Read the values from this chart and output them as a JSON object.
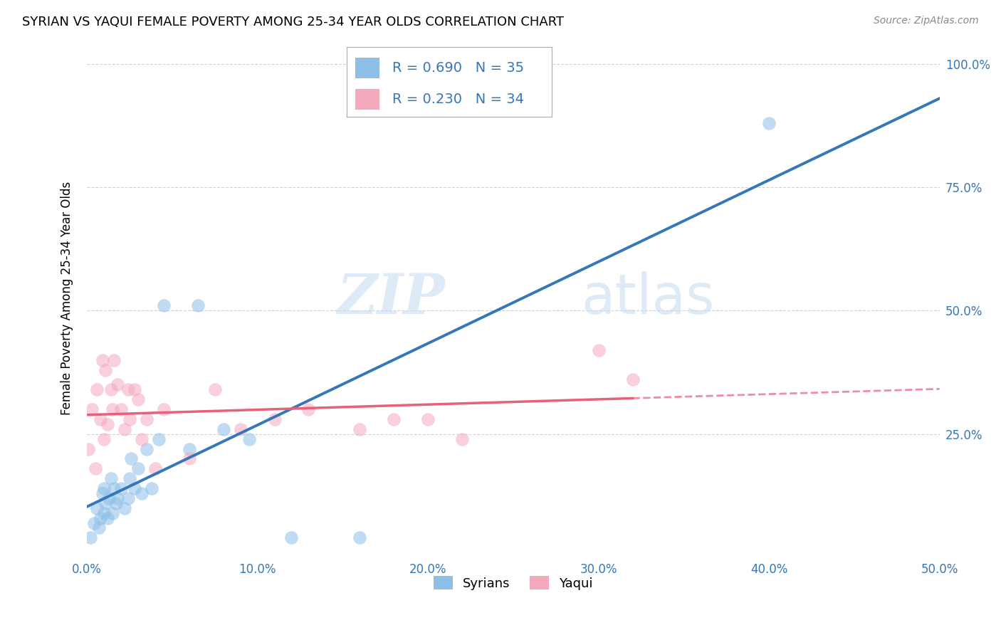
{
  "title": "SYRIAN VS YAQUI FEMALE POVERTY AMONG 25-34 YEAR OLDS CORRELATION CHART",
  "source": "Source: ZipAtlas.com",
  "ylabel": "Female Poverty Among 25-34 Year Olds",
  "watermark_zip": "ZIP",
  "watermark_atlas": "atlas",
  "syrian_color": "#8dbfe8",
  "yaqui_color": "#f4a8bc",
  "syrian_line_color": "#3577b8",
  "yaqui_line_color": "#e8607a",
  "syrian_label": "Syrians",
  "yaqui_label": "Yaqui",
  "tick_color": "#3577b8",
  "syrian_x": [
    0.002,
    0.004,
    0.006,
    0.007,
    0.008,
    0.009,
    0.01,
    0.01,
    0.011,
    0.012,
    0.013,
    0.014,
    0.015,
    0.016,
    0.017,
    0.018,
    0.02,
    0.022,
    0.024,
    0.025,
    0.026,
    0.028,
    0.03,
    0.032,
    0.035,
    0.038,
    0.042,
    0.045,
    0.06,
    0.065,
    0.08,
    0.095,
    0.12,
    0.16,
    0.4
  ],
  "syrian_y": [
    0.04,
    0.07,
    0.1,
    0.06,
    0.08,
    0.13,
    0.09,
    0.14,
    0.11,
    0.08,
    0.12,
    0.16,
    0.09,
    0.14,
    0.11,
    0.12,
    0.14,
    0.1,
    0.12,
    0.16,
    0.2,
    0.14,
    0.18,
    0.13,
    0.22,
    0.14,
    0.24,
    0.51,
    0.22,
    0.51,
    0.26,
    0.24,
    0.04,
    0.04,
    0.88
  ],
  "yaqui_x": [
    0.001,
    0.003,
    0.005,
    0.006,
    0.008,
    0.009,
    0.01,
    0.011,
    0.012,
    0.014,
    0.015,
    0.016,
    0.018,
    0.02,
    0.022,
    0.024,
    0.025,
    0.028,
    0.03,
    0.032,
    0.035,
    0.04,
    0.045,
    0.06,
    0.075,
    0.09,
    0.11,
    0.13,
    0.16,
    0.18,
    0.2,
    0.22,
    0.3,
    0.32
  ],
  "yaqui_y": [
    0.22,
    0.3,
    0.18,
    0.34,
    0.28,
    0.4,
    0.24,
    0.38,
    0.27,
    0.34,
    0.3,
    0.4,
    0.35,
    0.3,
    0.26,
    0.34,
    0.28,
    0.34,
    0.32,
    0.24,
    0.28,
    0.18,
    0.3,
    0.2,
    0.34,
    0.26,
    0.28,
    0.3,
    0.26,
    0.28,
    0.28,
    0.24,
    0.42,
    0.36
  ],
  "xlim": [
    0.0,
    0.5
  ],
  "ylim": [
    0.0,
    1.05
  ],
  "xticks": [
    0.0,
    0.1,
    0.2,
    0.3,
    0.4,
    0.5
  ],
  "xticklabels": [
    "0.0%",
    "10.0%",
    "20.0%",
    "30.0%",
    "40.0%",
    "50.0%"
  ],
  "yticks": [
    0.0,
    0.25,
    0.5,
    0.75,
    1.0
  ],
  "yticklabels_right": [
    "",
    "25.0%",
    "50.0%",
    "75.0%",
    "100.0%"
  ]
}
